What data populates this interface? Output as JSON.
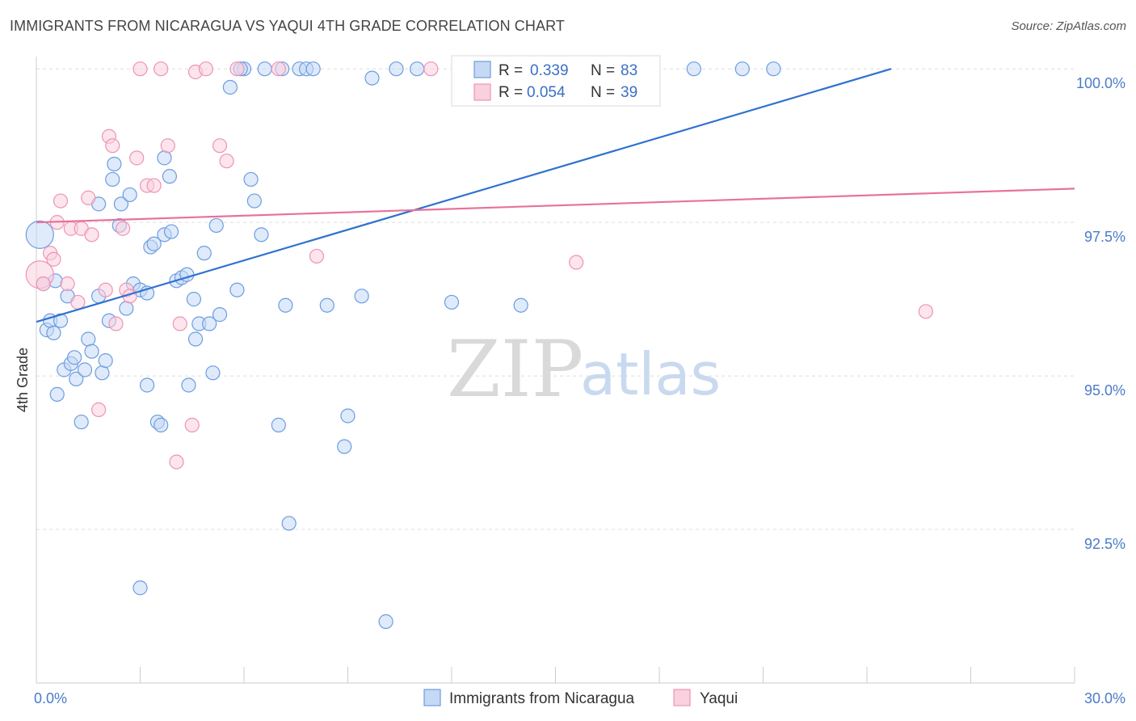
{
  "title": "IMMIGRANTS FROM NICARAGUA VS YAQUI 4TH GRADE CORRELATION CHART",
  "source": "Source: ZipAtlas.com",
  "watermark": {
    "zip": "ZIP",
    "atlas": "atlas"
  },
  "colors": {
    "blue_fill": "#c5d9f5",
    "blue_stroke": "#6d9de0",
    "blue_line": "#2f72d0",
    "pink_fill": "#f9d0de",
    "pink_stroke": "#ef93b4",
    "pink_line": "#e8719b",
    "grid": "#dddddd",
    "tick_text": "#4a7bc8"
  },
  "chart_data": {
    "type": "scatter",
    "title": "IMMIGRANTS FROM NICARAGUA VS YAQUI 4TH GRADE CORRELATION CHART",
    "xlabel": "",
    "ylabel": "4th Grade",
    "xlim": [
      0,
      30
    ],
    "ylim": [
      90.0,
      100.2
    ],
    "x_tick_labels": [
      {
        "value": 0,
        "label": "0.0%"
      },
      {
        "value": 30,
        "label": "30.0%"
      }
    ],
    "y_tick_labels": [
      {
        "value": 92.5,
        "label": "92.5%"
      },
      {
        "value": 95.0,
        "label": "95.0%"
      },
      {
        "value": 97.5,
        "label": "97.5%"
      },
      {
        "value": 100.0,
        "label": "100.0%"
      }
    ],
    "grid": true,
    "legend_position": "top-center",
    "stats": [
      {
        "r_label": "R = ",
        "r": "0.339",
        "n_label": "N = ",
        "n": "83"
      },
      {
        "r_label": "R = ",
        "r": "0.054",
        "n_label": "N = ",
        "n": "39"
      }
    ],
    "series": [
      {
        "name": "Immigrants from Nicaragua",
        "trend": [
          [
            0.0,
            95.88
          ],
          [
            24.7,
            100.0
          ]
        ],
        "points": [
          [
            0.1,
            97.3
          ],
          [
            0.2,
            96.5
          ],
          [
            0.3,
            95.75
          ],
          [
            0.4,
            95.9
          ],
          [
            0.5,
            95.7
          ],
          [
            0.55,
            96.55
          ],
          [
            0.6,
            94.7
          ],
          [
            0.7,
            95.9
          ],
          [
            0.8,
            95.1
          ],
          [
            0.9,
            96.3
          ],
          [
            1.0,
            95.2
          ],
          [
            1.1,
            95.3
          ],
          [
            1.15,
            94.95
          ],
          [
            1.3,
            94.25
          ],
          [
            1.4,
            95.1
          ],
          [
            1.5,
            95.6
          ],
          [
            1.6,
            95.4
          ],
          [
            1.8,
            96.3
          ],
          [
            1.8,
            97.8
          ],
          [
            1.9,
            95.05
          ],
          [
            2.0,
            95.25
          ],
          [
            2.1,
            95.9
          ],
          [
            2.2,
            98.2
          ],
          [
            2.25,
            98.45
          ],
          [
            2.4,
            97.45
          ],
          [
            2.45,
            97.8
          ],
          [
            2.6,
            96.1
          ],
          [
            2.7,
            97.95
          ],
          [
            2.8,
            96.5
          ],
          [
            3.0,
            96.4
          ],
          [
            3.0,
            91.55
          ],
          [
            3.2,
            96.35
          ],
          [
            3.2,
            94.85
          ],
          [
            3.3,
            97.1
          ],
          [
            3.4,
            97.15
          ],
          [
            3.5,
            94.25
          ],
          [
            3.6,
            94.2
          ],
          [
            3.7,
            98.55
          ],
          [
            3.7,
            97.3
          ],
          [
            3.85,
            98.25
          ],
          [
            3.9,
            97.35
          ],
          [
            4.05,
            96.55
          ],
          [
            4.2,
            96.6
          ],
          [
            4.35,
            96.65
          ],
          [
            4.4,
            94.85
          ],
          [
            4.55,
            96.25
          ],
          [
            4.6,
            95.6
          ],
          [
            4.7,
            95.85
          ],
          [
            4.85,
            97.0
          ],
          [
            5.0,
            95.85
          ],
          [
            5.1,
            95.05
          ],
          [
            5.2,
            97.45
          ],
          [
            5.3,
            96.0
          ],
          [
            5.6,
            99.7
          ],
          [
            5.8,
            96.4
          ],
          [
            6.0,
            100.0
          ],
          [
            6.2,
            98.2
          ],
          [
            6.3,
            97.85
          ],
          [
            6.5,
            97.3
          ],
          [
            6.6,
            100.0
          ],
          [
            7.0,
            94.2
          ],
          [
            7.1,
            100.0
          ],
          [
            7.2,
            96.15
          ],
          [
            7.3,
            92.6
          ],
          [
            7.6,
            100.0
          ],
          [
            7.8,
            100.0
          ],
          [
            8.0,
            100.0
          ],
          [
            8.4,
            96.15
          ],
          [
            8.9,
            93.85
          ],
          [
            9.0,
            94.35
          ],
          [
            9.4,
            96.3
          ],
          [
            9.7,
            99.85
          ],
          [
            10.1,
            91.0
          ],
          [
            10.4,
            100.0
          ],
          [
            11.0,
            100.0
          ],
          [
            12.0,
            96.2
          ],
          [
            14.0,
            96.15
          ],
          [
            15.8,
            99.7
          ],
          [
            16.1,
            100.0
          ],
          [
            19.0,
            100.0
          ],
          [
            20.4,
            100.0
          ],
          [
            21.3,
            100.0
          ],
          [
            5.9,
            100.0
          ]
        ]
      },
      {
        "name": "Yaqui",
        "trend": [
          [
            0.0,
            97.5
          ],
          [
            30.0,
            98.05
          ]
        ],
        "points": [
          [
            0.1,
            96.65
          ],
          [
            0.2,
            96.5
          ],
          [
            0.4,
            97.0
          ],
          [
            0.5,
            96.9
          ],
          [
            0.6,
            97.5
          ],
          [
            0.7,
            97.85
          ],
          [
            0.9,
            96.5
          ],
          [
            1.0,
            97.4
          ],
          [
            1.2,
            96.2
          ],
          [
            1.3,
            97.4
          ],
          [
            1.5,
            97.9
          ],
          [
            1.6,
            97.3
          ],
          [
            1.8,
            94.45
          ],
          [
            2.0,
            96.4
          ],
          [
            2.1,
            98.9
          ],
          [
            2.2,
            98.75
          ],
          [
            2.3,
            95.85
          ],
          [
            2.5,
            97.4
          ],
          [
            2.6,
            96.4
          ],
          [
            2.7,
            96.3
          ],
          [
            2.9,
            98.55
          ],
          [
            3.0,
            100.0
          ],
          [
            3.2,
            98.1
          ],
          [
            3.4,
            98.1
          ],
          [
            3.6,
            100.0
          ],
          [
            3.8,
            98.75
          ],
          [
            4.05,
            93.6
          ],
          [
            4.15,
            95.85
          ],
          [
            4.5,
            94.2
          ],
          [
            4.6,
            99.95
          ],
          [
            4.9,
            100.0
          ],
          [
            5.3,
            98.75
          ],
          [
            5.5,
            98.5
          ],
          [
            5.8,
            100.0
          ],
          [
            7.0,
            100.0
          ],
          [
            8.1,
            96.95
          ],
          [
            11.4,
            100.0
          ],
          [
            15.6,
            96.85
          ],
          [
            25.7,
            96.05
          ]
        ]
      }
    ]
  },
  "bottom_legend": [
    {
      "label": "Immigrants from Nicaragua"
    },
    {
      "label": "Yaqui"
    }
  ]
}
